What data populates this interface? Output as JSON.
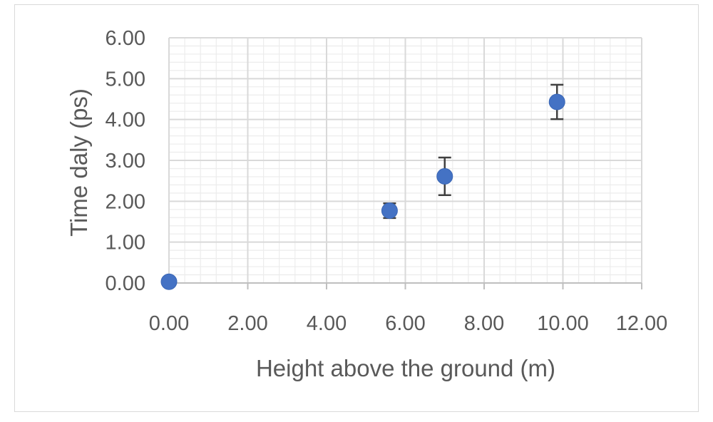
{
  "chart_data": {
    "type": "scatter",
    "title": "",
    "xlabel": "Height above the ground (m)",
    "ylabel": "Time daly (ps)",
    "xlim": [
      0,
      12
    ],
    "ylim": [
      0,
      6
    ],
    "x_major_step": 2,
    "y_major_step": 1,
    "x_minor_step": 0.4,
    "y_minor_step": 0.2,
    "x_tick_labels": [
      "0.00",
      "2.00",
      "4.00",
      "6.00",
      "8.00",
      "10.00",
      "12.00"
    ],
    "y_tick_labels": [
      "0.00",
      "1.00",
      "2.00",
      "3.00",
      "4.00",
      "5.00",
      "6.00"
    ],
    "grid": true,
    "legend": "none",
    "series": [
      {
        "color": "#4472c4",
        "points": [
          {
            "x": 0.0,
            "y": 0.03,
            "err": 0.0
          },
          {
            "x": 5.6,
            "y": 1.77,
            "err": 0.18
          },
          {
            "x": 7.0,
            "y": 2.61,
            "err": 0.46
          },
          {
            "x": 9.85,
            "y": 4.43,
            "err": 0.42
          }
        ]
      }
    ]
  }
}
